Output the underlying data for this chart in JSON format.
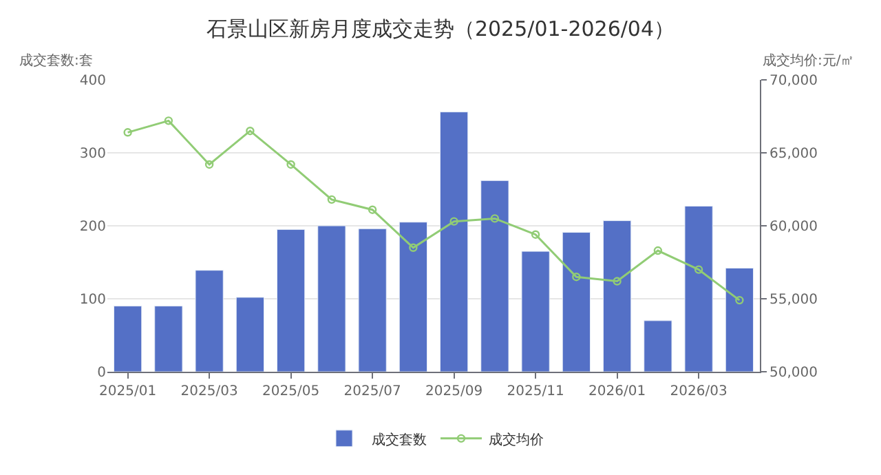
{
  "chart_data": {
    "type": "bar",
    "title": "石景山区新房月度成交走势（2025/01-2026/04）",
    "ylabel": "成交套数:套",
    "y2label": "成交均价:元/㎡",
    "categories": [
      "2025/01",
      null,
      "2025/03",
      null,
      "2025/05",
      null,
      "2025/07",
      null,
      "2025/09",
      null,
      "2025/11",
      null,
      "2026/01",
      null,
      "2026/03",
      null
    ],
    "series": [
      {
        "name": "成交套数",
        "color": "#5470c6",
        "values": [
          90,
          90,
          139,
          102,
          195,
          200,
          196,
          205,
          356,
          262,
          165,
          191,
          207,
          70,
          227,
          142
        ]
      },
      {
        "name": "成交均价",
        "type": "line",
        "axis": "y2",
        "color": "#91cc75",
        "marker": "circle",
        "values": [
          66400,
          67200,
          64200,
          66500,
          64200,
          61800,
          61100,
          58500,
          60300,
          60500,
          59400,
          56500,
          56200,
          58300,
          57000,
          54900
        ]
      }
    ],
    "ylim": [
      0,
      400
    ],
    "yticks": [
      0,
      100,
      200,
      300,
      400
    ],
    "y2lim": [
      50000,
      70000
    ],
    "y2ticks": [
      {
        "value": 50000,
        "label": "50,000"
      },
      {
        "value": 55000,
        "label": "55,000"
      },
      {
        "value": 60000,
        "label": "60,000"
      },
      {
        "value": 65000,
        "label": "65,000"
      },
      {
        "value": 70000,
        "label": "70,000"
      }
    ],
    "grid": "y",
    "legend": "bottom"
  }
}
